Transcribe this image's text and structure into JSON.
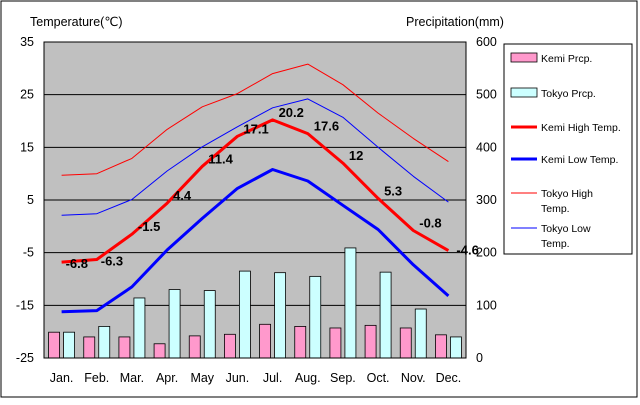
{
  "chart_data": {
    "type": "combo-bar-line",
    "title": "",
    "left_axis_title": "Temperature(℃)",
    "right_axis_title": "Precipitation(mm)",
    "categories": [
      "Jan.",
      "Feb.",
      "Mar.",
      "Apr.",
      "May",
      "Jun.",
      "Jul.",
      "Aug.",
      "Sep.",
      "Oct.",
      "Nov.",
      "Dec."
    ],
    "left_axis": {
      "min": -25,
      "max": 35,
      "ticks": [
        35,
        25,
        15,
        5,
        -5,
        -15,
        -25
      ],
      "tick_labels": [
        "35",
        "25",
        "15",
        "5",
        "-5",
        "-15",
        "-25"
      ]
    },
    "right_axis": {
      "min": 0,
      "max": 600,
      "ticks": [
        600,
        500,
        400,
        300,
        200,
        100,
        0
      ],
      "tick_labels": [
        "600",
        "500",
        "400",
        "300",
        "200",
        "100",
        "0"
      ]
    },
    "grid": "horizontal",
    "legend_position": "right",
    "bar_series": [
      {
        "name": "Kemi Prcp.",
        "legend_label": "Kemi Prcp.",
        "color": "#ff99cc",
        "axis": "right",
        "values": [
          49,
          40,
          40,
          27,
          42,
          45,
          64,
          60,
          57,
          62,
          57,
          44
        ]
      },
      {
        "name": "Tokyo Prcp.",
        "legend_label": "Tokyo Prcp.",
        "color": "#ccffff",
        "axis": "right",
        "values": [
          49,
          60,
          114,
          130,
          128,
          165,
          162,
          155,
          209,
          163,
          93,
          40
        ]
      }
    ],
    "line_series": [
      {
        "name": "Kemi High Temp.",
        "legend_lines": [
          "Kemi High Temp."
        ],
        "color": "#ff0000",
        "width": 3,
        "axis": "left",
        "values": [
          -6.8,
          -6.3,
          -1.5,
          4.4,
          11.4,
          17.1,
          20.2,
          17.6,
          12,
          5.3,
          -0.8,
          -4.6
        ],
        "data_labels": [
          "-6.8",
          "-6.3",
          "-1.5",
          "4.4",
          "11.4",
          "17.1",
          "20.2",
          "17.6",
          "12",
          "5.3",
          "-0.8",
          "-4.6"
        ]
      },
      {
        "name": "Kemi Low Temp.",
        "legend_lines": [
          "Kemi Low Temp."
        ],
        "color": "#0000ff",
        "width": 3,
        "axis": "left",
        "values": [
          -16.2,
          -16.0,
          -11.5,
          -4.5,
          1.5,
          7.2,
          10.8,
          8.6,
          4.0,
          -0.6,
          -7.3,
          -13.2
        ]
      },
      {
        "name": "Tokyo High Temp.",
        "legend_lines": [
          "Tokyo High",
          "Temp."
        ],
        "color": "#ff0000",
        "width": 1,
        "axis": "left",
        "values": [
          9.7,
          10.0,
          12.9,
          18.4,
          22.7,
          25.2,
          29.0,
          30.8,
          26.9,
          21.5,
          16.7,
          12.3
        ]
      },
      {
        "name": "Tokyo Low Temp.",
        "legend_lines": [
          "Tokyo Low",
          "Temp."
        ],
        "color": "#0000ff",
        "width": 1,
        "axis": "left",
        "values": [
          2.1,
          2.4,
          5.1,
          10.5,
          15.1,
          18.9,
          22.5,
          24.2,
          20.7,
          15.0,
          9.5,
          4.6
        ]
      }
    ]
  }
}
